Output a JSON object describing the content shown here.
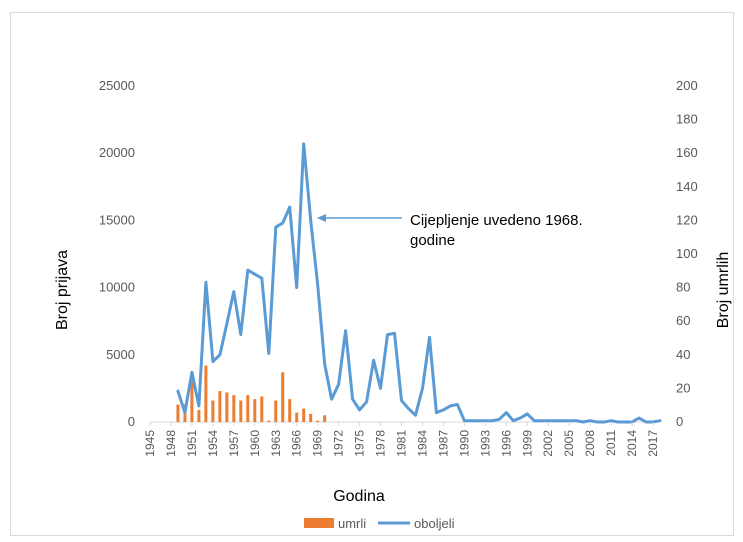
{
  "chart_data": {
    "type": "bar+line",
    "title": "",
    "xlabel": "Godina",
    "ylabel_left": "Broj prijava",
    "ylabel_right": "Broj umrlih",
    "ylim_left": [
      0,
      25000
    ],
    "ylim_right": [
      0,
      200
    ],
    "yticks_left": [
      "0",
      "5000",
      "10000",
      "15000",
      "20000",
      "25000"
    ],
    "yticks_right": [
      "0",
      "20",
      "40",
      "60",
      "80",
      "100",
      "120",
      "140",
      "160",
      "180",
      "200"
    ],
    "x_start": 1945,
    "x_end": 2018,
    "xtick_labels": [
      "1945",
      "1948",
      "1951",
      "1954",
      "1957",
      "1960",
      "1963",
      "1966",
      "1969",
      "1972",
      "1975",
      "1978",
      "1981",
      "1984",
      "1987",
      "1990",
      "1993",
      "1996",
      "1999",
      "2002",
      "2005",
      "2008",
      "2011",
      "2014",
      "2017"
    ],
    "legend": {
      "position": "bottom",
      "items": [
        "umrli",
        "oboljeli"
      ]
    },
    "annotation": {
      "lines": [
        "Cijepljenje uvedeno 1968.",
        "godine"
      ],
      "points_to_year": 1968
    },
    "series": [
      {
        "name": "umrli",
        "type": "bar",
        "axis": "left",
        "color": "#ED7D31",
        "x": [
          1949,
          1950,
          1951,
          1952,
          1953,
          1954,
          1955,
          1956,
          1957,
          1958,
          1959,
          1960,
          1961,
          1962,
          1963,
          1964,
          1965,
          1966,
          1967,
          1968,
          1969,
          1970
        ],
        "values": [
          1300,
          1300,
          3000,
          900,
          4200,
          1600,
          2300,
          2200,
          2000,
          1600,
          2000,
          1700,
          1900,
          100,
          1600,
          3700,
          1700,
          700,
          1000,
          600,
          100,
          500
        ]
      },
      {
        "name": "oboljeli",
        "type": "line",
        "axis": "left",
        "color": "#5B9BD5",
        "x": [
          1949,
          1950,
          1951,
          1952,
          1953,
          1954,
          1955,
          1956,
          1957,
          1958,
          1959,
          1960,
          1961,
          1962,
          1963,
          1964,
          1965,
          1966,
          1967,
          1968,
          1969,
          1970,
          1971,
          1972,
          1973,
          1974,
          1975,
          1976,
          1977,
          1978,
          1979,
          1980,
          1981,
          1982,
          1983,
          1984,
          1985,
          1986,
          1987,
          1988,
          1989,
          1990,
          1991,
          1992,
          1993,
          1994,
          1995,
          1996,
          1997,
          1998,
          1999,
          2000,
          2001,
          2002,
          2003,
          2004,
          2005,
          2006,
          2007,
          2008,
          2009,
          2010,
          2011,
          2012,
          2013,
          2014,
          2015,
          2016,
          2017,
          2018
        ],
        "values": [
          2300,
          700,
          3700,
          1200,
          10400,
          4500,
          5000,
          7300,
          9700,
          6500,
          11300,
          11000,
          10700,
          5100,
          14500,
          14800,
          16000,
          10000,
          20700,
          15000,
          10200,
          4300,
          1700,
          2800,
          6800,
          1700,
          900,
          1500,
          4600,
          2500,
          6500,
          6600,
          1600,
          1000,
          500,
          2500,
          6300,
          700,
          900,
          1200,
          1300,
          100,
          100,
          100,
          100,
          100,
          200,
          700,
          100,
          300,
          600,
          100,
          100,
          100,
          100,
          100,
          100,
          100,
          0,
          100,
          0,
          0,
          100,
          0,
          0,
          0,
          300,
          0,
          0,
          100
        ]
      }
    ]
  }
}
